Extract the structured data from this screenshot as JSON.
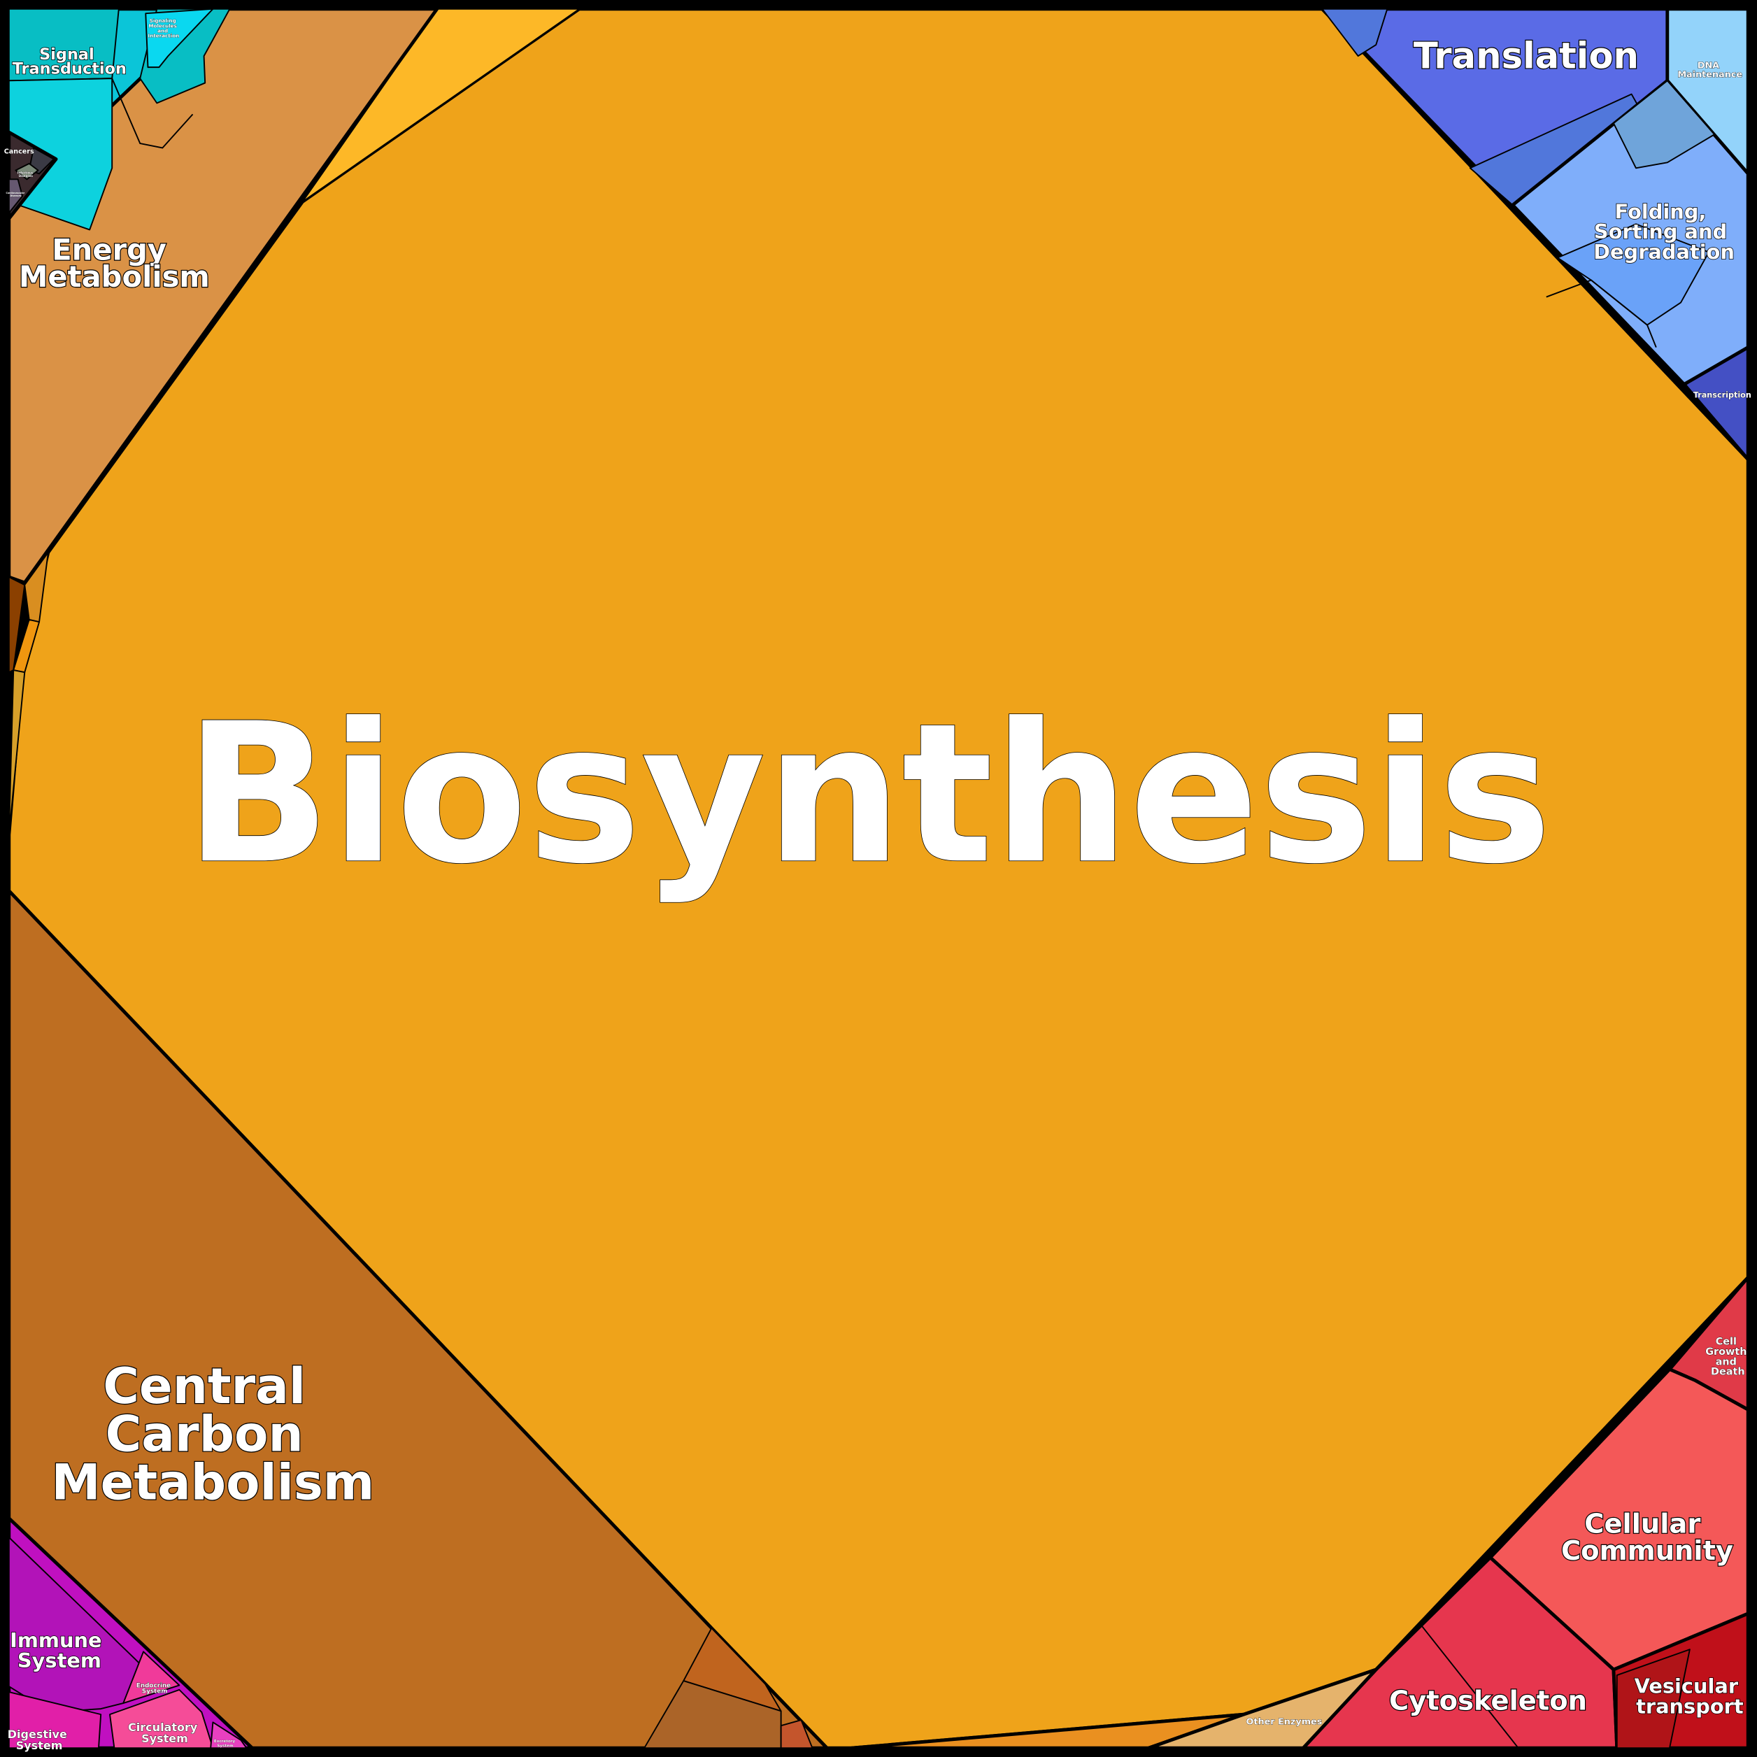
{
  "labels": {
    "biosynthesis": "Biosynthesis",
    "central_carbon": [
      "Central",
      "Carbon",
      "Metabolism"
    ],
    "energy": [
      "Energy",
      "Metabolism"
    ],
    "translation": "Translation",
    "folding": [
      "Folding,",
      "Sorting and",
      "Degradation"
    ],
    "dna_maintenance": [
      "DNA",
      "Maintenance"
    ],
    "transcription": "Transcription",
    "signal_transduction": [
      "Signal",
      "Transduction"
    ],
    "signaling_molecules": [
      "Signaling",
      "Molecules",
      "and",
      "Interaction"
    ],
    "cancers": "Cancers",
    "infectious_diseases": [
      "Infectious",
      "Diseases"
    ],
    "cardiovascular_diseases": [
      "Cardiovascular",
      "Diseases"
    ],
    "cellular_community": [
      "Cellular",
      "Community"
    ],
    "cell_growth": [
      "Cell",
      "Growth",
      "and",
      "Death"
    ],
    "cytoskeleton": "Cytoskeleton",
    "vesicular_transport": [
      "Vesicular",
      "transport"
    ],
    "other_enzymes": "Other Enzymes",
    "immune_system": [
      "Immune",
      "System"
    ],
    "endocrine_system": [
      "Endocrine",
      "System"
    ],
    "circulatory_system": [
      "Circulatory",
      "System"
    ],
    "digestive_system": [
      "Digestive",
      "System"
    ],
    "excretory_system": [
      "Excretory",
      "System"
    ]
  },
  "colors": {
    "biosynthesis": "#EFA31A",
    "biosynthesis_light": "#FDB827",
    "energy": "#DA9246",
    "central_carbon": "#BE6E21",
    "central_carbon_dark": "#AB6428",
    "central_carbon_red": "#C0641E",
    "central_carbon_rust": "#C4552C",
    "left_brown": "#8B4000",
    "left_orange": "#D98E20",
    "left_orange2": "#F0960F",
    "left_gold": "#D7A02A",
    "signal": "#0BC5D8",
    "signal_teal": "#08BEC4",
    "signal_cyan2": "#0DD2DE",
    "signaling_molecules": "#0AD8F0",
    "cancers": "#3A2A2E",
    "cancers_gray": "#3A3A44",
    "infectious": "#7A8A78",
    "cardiovascular": "#665870",
    "translation": "#5A6BE6",
    "translation_dark": "#5177DB",
    "folding": "#7FAEFA",
    "folding_steel": "#6FA4DA",
    "folding_blue": "#6AA2F8",
    "dna_maintenance": "#93D3FA",
    "transcription": "#4450C4",
    "cellular_community": "#F45858",
    "cell_growth": "#E03A48",
    "cytoskeleton": "#E6364E",
    "cytoskeleton_dark": "#E0284A",
    "vesicular": "#C0101A",
    "vesicular_dark": "#B01418",
    "other_enzymes": "#E5B36C",
    "orange_sliver": "#EA9020",
    "immune": "#B213B8",
    "immune2": "#C010C0",
    "endocrine": "#F03A9A",
    "circulatory": "#F54C98",
    "digestive": "#E11FA8",
    "excretory": "#E940C0"
  }
}
